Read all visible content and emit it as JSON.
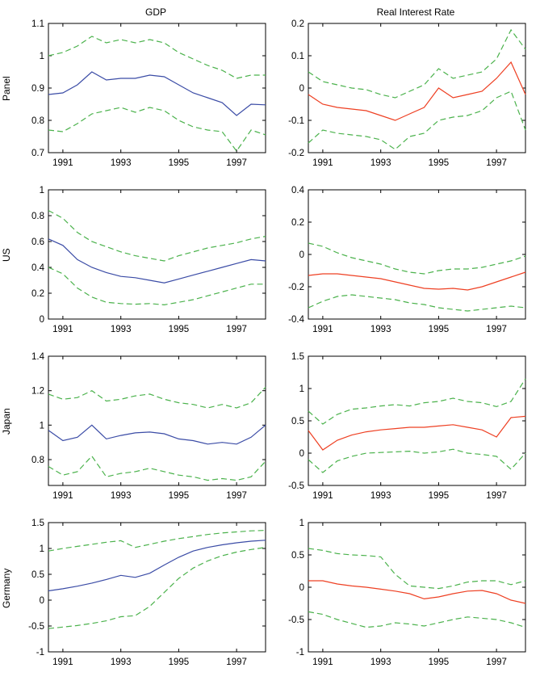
{
  "figure": {
    "columns": [
      "GDP",
      "Real Interest Rate"
    ],
    "rows": [
      "Panel",
      "US",
      "Japan",
      "Germany"
    ]
  },
  "style": {
    "gdp_line_color": "#3b4ca6",
    "rate_line_color": "#ee4023",
    "band_color": "#4bb24c",
    "axis_color": "#000000"
  },
  "chart_data": [
    {
      "name": "panel-gdp",
      "type": "line",
      "row": "Panel",
      "col": "GDP",
      "x": [
        1990.5,
        1991,
        1991.5,
        1992,
        1992.5,
        1993,
        1993.5,
        1994,
        1994.5,
        1995,
        1995.5,
        1996,
        1996.5,
        1997,
        1997.5,
        1998
      ],
      "xlim": [
        1990.5,
        1998
      ],
      "xticks": [
        1991,
        1993,
        1995,
        1997
      ],
      "xtick_labels": [
        "1991",
        "1993",
        "1995",
        "1997"
      ],
      "ylim": [
        0.7,
        1.1
      ],
      "yticks": [
        0.7,
        0.8,
        0.9,
        1.0,
        1.1
      ],
      "ytick_labels": [
        "0.7",
        "0.8",
        "0.9",
        "1",
        "1.1"
      ],
      "series": [
        {
          "name": "estimate",
          "style": "solid",
          "color": "gdp_line_color",
          "values": [
            0.88,
            0.885,
            0.91,
            0.95,
            0.925,
            0.93,
            0.93,
            0.94,
            0.935,
            0.91,
            0.885,
            0.87,
            0.855,
            0.815,
            0.85,
            0.848
          ]
        },
        {
          "name": "upper-band",
          "style": "dashed",
          "color": "band_color",
          "values": [
            1.0,
            1.01,
            1.03,
            1.06,
            1.04,
            1.05,
            1.04,
            1.05,
            1.04,
            1.01,
            0.99,
            0.97,
            0.955,
            0.93,
            0.94,
            0.94
          ]
        },
        {
          "name": "lower-band",
          "style": "dashed",
          "color": "band_color",
          "values": [
            0.77,
            0.765,
            0.79,
            0.82,
            0.83,
            0.84,
            0.825,
            0.84,
            0.83,
            0.8,
            0.78,
            0.77,
            0.765,
            0.705,
            0.77,
            0.755
          ]
        }
      ]
    },
    {
      "name": "panel-rate",
      "type": "line",
      "row": "Panel",
      "col": "Real Interest Rate",
      "x": [
        1990.5,
        1991,
        1991.5,
        1992,
        1992.5,
        1993,
        1993.5,
        1994,
        1994.5,
        1995,
        1995.5,
        1996,
        1996.5,
        1997,
        1997.5,
        1998
      ],
      "xlim": [
        1990.5,
        1998
      ],
      "xticks": [
        1991,
        1993,
        1995,
        1997
      ],
      "xtick_labels": [
        "1991",
        "1993",
        "1995",
        "1997"
      ],
      "ylim": [
        -0.2,
        0.2
      ],
      "yticks": [
        -0.2,
        -0.1,
        0,
        0.1,
        0.2
      ],
      "ytick_labels": [
        "-0.2",
        "-0.1",
        "0",
        "0.1",
        "0.2"
      ],
      "series": [
        {
          "name": "estimate",
          "style": "solid",
          "color": "rate_line_color",
          "values": [
            -0.02,
            -0.05,
            -0.06,
            -0.065,
            -0.07,
            -0.085,
            -0.1,
            -0.08,
            -0.06,
            0.0,
            -0.03,
            -0.02,
            -0.01,
            0.03,
            0.08,
            -0.02
          ]
        },
        {
          "name": "upper-band",
          "style": "dashed",
          "color": "band_color",
          "values": [
            0.05,
            0.02,
            0.01,
            0.0,
            -0.005,
            -0.02,
            -0.03,
            -0.01,
            0.01,
            0.06,
            0.03,
            0.04,
            0.05,
            0.09,
            0.18,
            0.12
          ]
        },
        {
          "name": "lower-band",
          "style": "dashed",
          "color": "band_color",
          "values": [
            -0.17,
            -0.13,
            -0.14,
            -0.145,
            -0.15,
            -0.16,
            -0.19,
            -0.15,
            -0.14,
            -0.1,
            -0.09,
            -0.085,
            -0.07,
            -0.03,
            -0.01,
            -0.13
          ]
        }
      ]
    },
    {
      "name": "us-gdp",
      "type": "line",
      "row": "US",
      "col": "GDP",
      "x": [
        1990.5,
        1991,
        1991.5,
        1992,
        1992.5,
        1993,
        1993.5,
        1994,
        1994.5,
        1995,
        1995.5,
        1996,
        1996.5,
        1997,
        1997.5,
        1998
      ],
      "xlim": [
        1990.5,
        1998
      ],
      "xticks": [
        1991,
        1993,
        1995,
        1997
      ],
      "xtick_labels": [
        "1991",
        "1993",
        "1995",
        "1997"
      ],
      "ylim": [
        0,
        1
      ],
      "yticks": [
        0,
        0.2,
        0.4,
        0.6,
        0.8,
        1
      ],
      "ytick_labels": [
        "0",
        "0.2",
        "0.4",
        "0.6",
        "0.8",
        "1"
      ],
      "series": [
        {
          "name": "estimate",
          "style": "solid",
          "color": "gdp_line_color",
          "values": [
            0.62,
            0.57,
            0.46,
            0.4,
            0.36,
            0.33,
            0.32,
            0.3,
            0.28,
            0.31,
            0.34,
            0.37,
            0.4,
            0.43,
            0.46,
            0.45
          ]
        },
        {
          "name": "upper-band",
          "style": "dashed",
          "color": "band_color",
          "values": [
            0.84,
            0.78,
            0.67,
            0.6,
            0.56,
            0.52,
            0.49,
            0.47,
            0.45,
            0.49,
            0.52,
            0.55,
            0.57,
            0.59,
            0.62,
            0.64
          ]
        },
        {
          "name": "lower-band",
          "style": "dashed",
          "color": "band_color",
          "values": [
            0.4,
            0.35,
            0.24,
            0.17,
            0.13,
            0.12,
            0.115,
            0.12,
            0.11,
            0.13,
            0.15,
            0.18,
            0.21,
            0.24,
            0.27,
            0.27
          ]
        }
      ]
    },
    {
      "name": "us-rate",
      "type": "line",
      "row": "US",
      "col": "Real Interest Rate",
      "x": [
        1990.5,
        1991,
        1991.5,
        1992,
        1992.5,
        1993,
        1993.5,
        1994,
        1994.5,
        1995,
        1995.5,
        1996,
        1996.5,
        1997,
        1997.5,
        1998
      ],
      "xlim": [
        1990.5,
        1998
      ],
      "xticks": [
        1991,
        1993,
        1995,
        1997
      ],
      "xtick_labels": [
        "1991",
        "1993",
        "1995",
        "1997"
      ],
      "ylim": [
        -0.4,
        0.4
      ],
      "yticks": [
        -0.4,
        -0.2,
        0,
        0.2,
        0.4
      ],
      "ytick_labels": [
        "-0.4",
        "-0.2",
        "0",
        "0.2",
        "0.4"
      ],
      "series": [
        {
          "name": "estimate",
          "style": "solid",
          "color": "rate_line_color",
          "values": [
            -0.13,
            -0.12,
            -0.12,
            -0.13,
            -0.14,
            -0.15,
            -0.17,
            -0.19,
            -0.21,
            -0.215,
            -0.21,
            -0.22,
            -0.2,
            -0.17,
            -0.14,
            -0.11
          ]
        },
        {
          "name": "upper-band",
          "style": "dashed",
          "color": "band_color",
          "values": [
            0.07,
            0.05,
            0.01,
            -0.02,
            -0.04,
            -0.06,
            -0.09,
            -0.11,
            -0.12,
            -0.1,
            -0.09,
            -0.09,
            -0.08,
            -0.06,
            -0.04,
            -0.01
          ]
        },
        {
          "name": "lower-band",
          "style": "dashed",
          "color": "band_color",
          "values": [
            -0.33,
            -0.29,
            -0.26,
            -0.25,
            -0.26,
            -0.27,
            -0.28,
            -0.3,
            -0.31,
            -0.33,
            -0.34,
            -0.35,
            -0.34,
            -0.33,
            -0.32,
            -0.33
          ]
        }
      ]
    },
    {
      "name": "japan-gdp",
      "type": "line",
      "row": "Japan",
      "col": "GDP",
      "x": [
        1990.5,
        1991,
        1991.5,
        1992,
        1992.5,
        1993,
        1993.5,
        1994,
        1994.5,
        1995,
        1995.5,
        1996,
        1996.5,
        1997,
        1997.5,
        1998
      ],
      "xlim": [
        1990.5,
        1998
      ],
      "xticks": [
        1991,
        1993,
        1995,
        1997
      ],
      "xtick_labels": [
        "1991",
        "1993",
        "1995",
        "1997"
      ],
      "ylim": [
        0.65,
        1.4
      ],
      "yticks": [
        0.8,
        1.0,
        1.2,
        1.4
      ],
      "ytick_labels": [
        "0.8",
        "1",
        "1.2",
        "1.4"
      ],
      "series": [
        {
          "name": "estimate",
          "style": "solid",
          "color": "gdp_line_color",
          "values": [
            0.97,
            0.91,
            0.93,
            1.0,
            0.92,
            0.94,
            0.955,
            0.96,
            0.95,
            0.92,
            0.91,
            0.89,
            0.9,
            0.89,
            0.93,
            1.0
          ]
        },
        {
          "name": "upper-band",
          "style": "dashed",
          "color": "band_color",
          "values": [
            1.18,
            1.15,
            1.16,
            1.2,
            1.14,
            1.15,
            1.17,
            1.18,
            1.15,
            1.13,
            1.12,
            1.1,
            1.12,
            1.1,
            1.13,
            1.22
          ]
        },
        {
          "name": "lower-band",
          "style": "dashed",
          "color": "band_color",
          "values": [
            0.76,
            0.71,
            0.73,
            0.82,
            0.7,
            0.72,
            0.73,
            0.75,
            0.73,
            0.71,
            0.7,
            0.68,
            0.69,
            0.68,
            0.7,
            0.79
          ]
        }
      ]
    },
    {
      "name": "japan-rate",
      "type": "line",
      "row": "Japan",
      "col": "Real Interest Rate",
      "x": [
        1990.5,
        1991,
        1991.5,
        1992,
        1992.5,
        1993,
        1993.5,
        1994,
        1994.5,
        1995,
        1995.5,
        1996,
        1996.5,
        1997,
        1997.5,
        1998
      ],
      "xlim": [
        1990.5,
        1998
      ],
      "xticks": [
        1991,
        1993,
        1995,
        1997
      ],
      "xtick_labels": [
        "1991",
        "1993",
        "1995",
        "1997"
      ],
      "ylim": [
        -0.5,
        1.5
      ],
      "yticks": [
        -0.5,
        0,
        0.5,
        1,
        1.5
      ],
      "ytick_labels": [
        "-0.5",
        "0",
        "0.5",
        "1",
        "1.5"
      ],
      "series": [
        {
          "name": "estimate",
          "style": "solid",
          "color": "rate_line_color",
          "values": [
            0.35,
            0.05,
            0.2,
            0.28,
            0.33,
            0.36,
            0.38,
            0.4,
            0.4,
            0.42,
            0.44,
            0.4,
            0.36,
            0.25,
            0.55,
            0.57
          ]
        },
        {
          "name": "upper-band",
          "style": "dashed",
          "color": "band_color",
          "values": [
            0.65,
            0.45,
            0.6,
            0.68,
            0.7,
            0.73,
            0.75,
            0.73,
            0.78,
            0.8,
            0.85,
            0.8,
            0.78,
            0.72,
            0.8,
            1.15
          ]
        },
        {
          "name": "lower-band",
          "style": "dashed",
          "color": "band_color",
          "values": [
            -0.1,
            -0.3,
            -0.12,
            -0.05,
            0.0,
            0.01,
            0.02,
            0.03,
            0.0,
            0.02,
            0.06,
            0.0,
            -0.02,
            -0.05,
            -0.25,
            0.0
          ]
        }
      ]
    },
    {
      "name": "germany-gdp",
      "type": "line",
      "row": "Germany",
      "col": "GDP",
      "x": [
        1990.5,
        1991,
        1991.5,
        1992,
        1992.5,
        1993,
        1993.5,
        1994,
        1994.5,
        1995,
        1995.5,
        1996,
        1996.5,
        1997,
        1997.5,
        1998
      ],
      "xlim": [
        1990.5,
        1998
      ],
      "xticks": [
        1991,
        1993,
        1995,
        1997
      ],
      "xtick_labels": [
        "1991",
        "1993",
        "1995",
        "1997"
      ],
      "ylim": [
        -1,
        1.5
      ],
      "yticks": [
        -1,
        -0.5,
        0,
        0.5,
        1,
        1.5
      ],
      "ytick_labels": [
        "-1",
        "-0.5",
        "0",
        "0.5",
        "1",
        "1.5"
      ],
      "series": [
        {
          "name": "estimate",
          "style": "solid",
          "color": "gdp_line_color",
          "values": [
            0.18,
            0.22,
            0.27,
            0.33,
            0.4,
            0.48,
            0.44,
            0.52,
            0.68,
            0.83,
            0.95,
            1.02,
            1.07,
            1.11,
            1.14,
            1.16
          ]
        },
        {
          "name": "upper-band",
          "style": "dashed",
          "color": "band_color",
          "values": [
            0.95,
            1.0,
            1.04,
            1.08,
            1.12,
            1.15,
            1.02,
            1.08,
            1.14,
            1.19,
            1.23,
            1.27,
            1.3,
            1.32,
            1.34,
            1.35
          ]
        },
        {
          "name": "lower-band",
          "style": "dashed",
          "color": "band_color",
          "values": [
            -0.55,
            -0.52,
            -0.49,
            -0.45,
            -0.4,
            -0.32,
            -0.3,
            -0.12,
            0.15,
            0.42,
            0.62,
            0.76,
            0.86,
            0.93,
            0.98,
            1.02
          ]
        }
      ]
    },
    {
      "name": "germany-rate",
      "type": "line",
      "row": "Germany",
      "col": "Real Interest Rate",
      "x": [
        1990.5,
        1991,
        1991.5,
        1992,
        1992.5,
        1993,
        1993.5,
        1994,
        1994.5,
        1995,
        1995.5,
        1996,
        1996.5,
        1997,
        1997.5,
        1998
      ],
      "xlim": [
        1990.5,
        1998
      ],
      "xticks": [
        1991,
        1993,
        1995,
        1997
      ],
      "xtick_labels": [
        "1991",
        "1993",
        "1995",
        "1997"
      ],
      "ylim": [
        -1,
        1
      ],
      "yticks": [
        -1,
        -0.5,
        0,
        0.5,
        1
      ],
      "ytick_labels": [
        "-1",
        "-0.5",
        "0",
        "0.5",
        "1"
      ],
      "series": [
        {
          "name": "estimate",
          "style": "solid",
          "color": "rate_line_color",
          "values": [
            0.1,
            0.1,
            0.05,
            0.02,
            0.0,
            -0.03,
            -0.06,
            -0.1,
            -0.18,
            -0.15,
            -0.1,
            -0.06,
            -0.05,
            -0.1,
            -0.2,
            -0.25
          ]
        },
        {
          "name": "upper-band",
          "style": "dashed",
          "color": "band_color",
          "values": [
            0.6,
            0.57,
            0.52,
            0.5,
            0.49,
            0.47,
            0.2,
            0.02,
            0.0,
            -0.02,
            0.02,
            0.08,
            0.1,
            0.1,
            0.04,
            0.1
          ]
        },
        {
          "name": "lower-band",
          "style": "dashed",
          "color": "band_color",
          "values": [
            -0.38,
            -0.42,
            -0.5,
            -0.56,
            -0.62,
            -0.6,
            -0.55,
            -0.57,
            -0.6,
            -0.55,
            -0.5,
            -0.46,
            -0.48,
            -0.5,
            -0.55,
            -0.62
          ]
        }
      ]
    }
  ]
}
